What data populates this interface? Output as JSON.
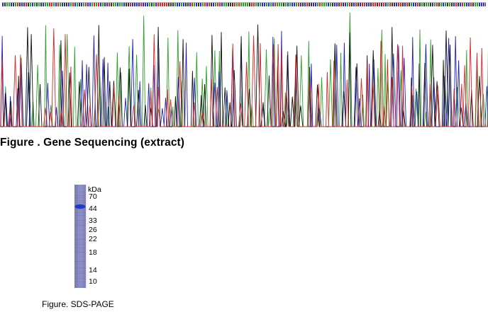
{
  "sequencing_figure": {
    "caption": "Figure . Gene Sequencing (extract)",
    "trace_colors": {
      "A": "#2ca02c",
      "C": "#1f1fbf",
      "G": "#111111",
      "T": "#d62728"
    },
    "strip_colors": {
      "A": "#2ca02c",
      "C": "#2b2bd0",
      "G": "#333333",
      "T": "#d62728"
    }
  },
  "sds_page_figure": {
    "caption": "Figure. SDS-PAGE",
    "unit_label": "kDa",
    "markers": [
      "70",
      "44",
      "33",
      "26",
      "22",
      "18",
      "14",
      "10"
    ],
    "lane_color": "#8587c0",
    "band_color": "#1f3fbf"
  }
}
